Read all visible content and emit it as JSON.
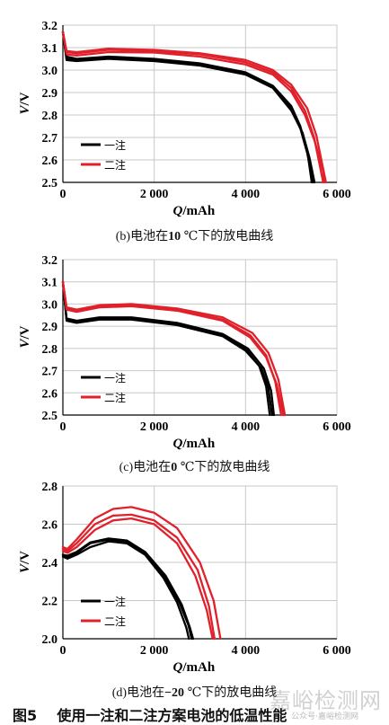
{
  "figure_title": "图5    使用一注和二注方案电池的低温性能",
  "watermark": "嘉峪检测网",
  "watermark_small": "公众号·嘉峪检测网",
  "colors": {
    "black": "#000000",
    "red": "#e0212b",
    "grid": "#c8c8c8",
    "axis": "#000000"
  },
  "chart_data": [
    {
      "type": "line",
      "caption": {
        "prefix": "(b)",
        "text": "电池在",
        "bold": "10",
        "suffix": " ℃下的放电曲线"
      },
      "xlabel": "Q/mAh",
      "ylabel": "V/V",
      "xlim": [
        0,
        6000
      ],
      "ylim": [
        2.5,
        3.2
      ],
      "xticks": [
        "0",
        "2 000",
        "4 000",
        "6 000"
      ],
      "yticks": [
        "2.5",
        "2.6",
        "2.7",
        "2.8",
        "2.9",
        "3.0",
        "3.1",
        "3.2"
      ],
      "grid": true,
      "legend_position": "bottom-left",
      "legend": [
        {
          "label": "一注",
          "color": "#000000"
        },
        {
          "label": "二注",
          "color": "#e0212b"
        }
      ],
      "series": [
        {
          "name": "一注",
          "color": "#000000",
          "points": [
            [
              0,
              3.17
            ],
            [
              80,
              3.06
            ],
            [
              300,
              3.05
            ],
            [
              1000,
              3.06
            ],
            [
              2000,
              3.05
            ],
            [
              3000,
              3.03
            ],
            [
              4000,
              2.99
            ],
            [
              4600,
              2.93
            ],
            [
              5000,
              2.84
            ],
            [
              5200,
              2.75
            ],
            [
              5350,
              2.64
            ],
            [
              5450,
              2.5
            ]
          ]
        },
        {
          "name": "一注",
          "color": "#000000",
          "points": [
            [
              0,
              3.17
            ],
            [
              80,
              3.05
            ],
            [
              300,
              3.045
            ],
            [
              1000,
              3.055
            ],
            [
              2000,
              3.045
            ],
            [
              3000,
              3.025
            ],
            [
              4000,
              2.985
            ],
            [
              4600,
              2.925
            ],
            [
              5000,
              2.83
            ],
            [
              5200,
              2.74
            ],
            [
              5350,
              2.63
            ],
            [
              5480,
              2.5
            ]
          ]
        },
        {
          "name": "一注",
          "color": "#000000",
          "points": [
            [
              0,
              3.17
            ],
            [
              80,
              3.045
            ],
            [
              300,
              3.04
            ],
            [
              1000,
              3.05
            ],
            [
              2000,
              3.04
            ],
            [
              3000,
              3.02
            ],
            [
              4000,
              2.98
            ],
            [
              4600,
              2.92
            ],
            [
              5000,
              2.82
            ],
            [
              5250,
              2.72
            ],
            [
              5400,
              2.61
            ],
            [
              5510,
              2.5
            ]
          ]
        },
        {
          "name": "二注",
          "color": "#e0212b",
          "points": [
            [
              0,
              3.17
            ],
            [
              80,
              3.08
            ],
            [
              300,
              3.075
            ],
            [
              1000,
              3.09
            ],
            [
              2000,
              3.085
            ],
            [
              3000,
              3.07
            ],
            [
              4000,
              3.035
            ],
            [
              4600,
              2.99
            ],
            [
              5000,
              2.92
            ],
            [
              5300,
              2.82
            ],
            [
              5500,
              2.7
            ],
            [
              5700,
              2.5
            ]
          ]
        },
        {
          "name": "二注",
          "color": "#e0212b",
          "points": [
            [
              0,
              3.17
            ],
            [
              80,
              3.085
            ],
            [
              300,
              3.08
            ],
            [
              1000,
              3.095
            ],
            [
              2000,
              3.09
            ],
            [
              3000,
              3.075
            ],
            [
              4000,
              3.045
            ],
            [
              4600,
              3.0
            ],
            [
              5000,
              2.935
            ],
            [
              5350,
              2.83
            ],
            [
              5550,
              2.71
            ],
            [
              5760,
              2.5
            ]
          ]
        },
        {
          "name": "二注",
          "color": "#e0212b",
          "points": [
            [
              0,
              3.17
            ],
            [
              80,
              3.07
            ],
            [
              300,
              3.065
            ],
            [
              1000,
              3.08
            ],
            [
              2000,
              3.078
            ],
            [
              3000,
              3.06
            ],
            [
              4000,
              3.025
            ],
            [
              4600,
              2.98
            ],
            [
              5000,
              2.905
            ],
            [
              5300,
              2.8
            ],
            [
              5520,
              2.68
            ],
            [
              5700,
              2.55
            ],
            [
              5730,
              2.5
            ]
          ]
        }
      ]
    },
    {
      "type": "line",
      "caption": {
        "prefix": "(c)",
        "text": "电池在",
        "bold": "0",
        "suffix": " ℃下的放电曲线"
      },
      "xlabel": "Q/mAh",
      "ylabel": "V/V",
      "xlim": [
        0,
        6000
      ],
      "ylim": [
        2.5,
        3.2
      ],
      "xticks": [
        "0",
        "2 000",
        "4 000",
        "6 000"
      ],
      "yticks": [
        "2.5",
        "2.6",
        "2.7",
        "2.8",
        "2.9",
        "3.0",
        "3.1",
        "3.2"
      ],
      "grid": true,
      "legend_position": "bottom-left",
      "legend": [
        {
          "label": "一注",
          "color": "#000000"
        },
        {
          "label": "二注",
          "color": "#e0212b"
        }
      ],
      "series": [
        {
          "name": "一注",
          "color": "#000000",
          "points": [
            [
              0,
              3.1
            ],
            [
              80,
              2.93
            ],
            [
              300,
              2.92
            ],
            [
              800,
              2.935
            ],
            [
              1500,
              2.935
            ],
            [
              2500,
              2.91
            ],
            [
              3500,
              2.86
            ],
            [
              4000,
              2.8
            ],
            [
              4300,
              2.72
            ],
            [
              4450,
              2.63
            ],
            [
              4530,
              2.5
            ]
          ]
        },
        {
          "name": "一注",
          "color": "#000000",
          "points": [
            [
              0,
              3.1
            ],
            [
              80,
              2.925
            ],
            [
              300,
              2.915
            ],
            [
              800,
              2.93
            ],
            [
              1500,
              2.93
            ],
            [
              2500,
              2.905
            ],
            [
              3500,
              2.855
            ],
            [
              4000,
              2.79
            ],
            [
              4350,
              2.71
            ],
            [
              4500,
              2.62
            ],
            [
              4580,
              2.5
            ]
          ]
        },
        {
          "name": "一注",
          "color": "#000000",
          "points": [
            [
              0,
              3.1
            ],
            [
              80,
              2.935
            ],
            [
              300,
              2.925
            ],
            [
              800,
              2.94
            ],
            [
              1500,
              2.94
            ],
            [
              2500,
              2.915
            ],
            [
              3500,
              2.865
            ],
            [
              4050,
              2.8
            ],
            [
              4400,
              2.71
            ],
            [
              4560,
              2.61
            ],
            [
              4620,
              2.5
            ]
          ]
        },
        {
          "name": "二注",
          "color": "#e0212b",
          "points": [
            [
              0,
              3.1
            ],
            [
              80,
              2.98
            ],
            [
              300,
              2.97
            ],
            [
              800,
              2.99
            ],
            [
              1500,
              2.995
            ],
            [
              2500,
              2.975
            ],
            [
              3500,
              2.93
            ],
            [
              4100,
              2.86
            ],
            [
              4450,
              2.77
            ],
            [
              4650,
              2.65
            ],
            [
              4780,
              2.5
            ]
          ]
        },
        {
          "name": "二注",
          "color": "#e0212b",
          "points": [
            [
              0,
              3.1
            ],
            [
              80,
              2.985
            ],
            [
              300,
              2.975
            ],
            [
              800,
              2.995
            ],
            [
              1500,
              3.0
            ],
            [
              2500,
              2.98
            ],
            [
              3500,
              2.94
            ],
            [
              4150,
              2.87
            ],
            [
              4500,
              2.78
            ],
            [
              4720,
              2.66
            ],
            [
              4860,
              2.5
            ]
          ]
        },
        {
          "name": "二注",
          "color": "#e0212b",
          "points": [
            [
              0,
              3.1
            ],
            [
              80,
              2.975
            ],
            [
              300,
              2.965
            ],
            [
              800,
              2.985
            ],
            [
              1500,
              2.99
            ],
            [
              2500,
              2.97
            ],
            [
              3500,
              2.925
            ],
            [
              4100,
              2.85
            ],
            [
              4450,
              2.76
            ],
            [
              4680,
              2.64
            ],
            [
              4830,
              2.5
            ]
          ]
        }
      ]
    },
    {
      "type": "line",
      "caption": {
        "prefix": "(d)",
        "text": "电池在",
        "bold": "−20",
        "suffix": " ℃下的放电曲线"
      },
      "xlabel": "Q/mAh",
      "ylabel": "V/V",
      "xlim": [
        0,
        6000
      ],
      "ylim": [
        2.0,
        2.8
      ],
      "xticks": [
        "0",
        "2 000",
        "4 000",
        "6 000"
      ],
      "yticks": [
        "2.0",
        "2.2",
        "2.4",
        "2.6",
        "2.8"
      ],
      "grid": true,
      "legend_position": "bottom-left",
      "legend": [
        {
          "label": "一注",
          "color": "#000000"
        },
        {
          "label": "二注",
          "color": "#e0212b"
        }
      ],
      "series": [
        {
          "name": "一注",
          "color": "#000000",
          "points": [
            [
              0,
              2.43
            ],
            [
              100,
              2.42
            ],
            [
              300,
              2.44
            ],
            [
              600,
              2.48
            ],
            [
              1000,
              2.51
            ],
            [
              1400,
              2.5
            ],
            [
              1800,
              2.44
            ],
            [
              2200,
              2.32
            ],
            [
              2500,
              2.19
            ],
            [
              2700,
              2.06
            ],
            [
              2760,
              2.0
            ]
          ]
        },
        {
          "name": "一注",
          "color": "#000000",
          "points": [
            [
              0,
              2.44
            ],
            [
              100,
              2.43
            ],
            [
              300,
              2.45
            ],
            [
              600,
              2.5
            ],
            [
              1000,
              2.52
            ],
            [
              1400,
              2.51
            ],
            [
              1800,
              2.45
            ],
            [
              2200,
              2.33
            ],
            [
              2550,
              2.19
            ],
            [
              2750,
              2.07
            ],
            [
              2820,
              2.0
            ]
          ]
        },
        {
          "name": "一注",
          "color": "#000000",
          "points": [
            [
              0,
              2.44
            ],
            [
              100,
              2.435
            ],
            [
              300,
              2.455
            ],
            [
              600,
              2.505
            ],
            [
              1000,
              2.525
            ],
            [
              1400,
              2.515
            ],
            [
              1800,
              2.455
            ],
            [
              2250,
              2.33
            ],
            [
              2600,
              2.18
            ],
            [
              2780,
              2.06
            ],
            [
              2850,
              2.0
            ]
          ]
        },
        {
          "name": "二注",
          "color": "#e0212b",
          "points": [
            [
              0,
              2.46
            ],
            [
              100,
              2.45
            ],
            [
              300,
              2.48
            ],
            [
              700,
              2.57
            ],
            [
              1100,
              2.62
            ],
            [
              1500,
              2.63
            ],
            [
              2000,
              2.6
            ],
            [
              2500,
              2.5
            ],
            [
              2900,
              2.33
            ],
            [
              3150,
              2.15
            ],
            [
              3280,
              2.0
            ]
          ]
        },
        {
          "name": "二注",
          "color": "#e0212b",
          "points": [
            [
              0,
              2.47
            ],
            [
              100,
              2.46
            ],
            [
              300,
              2.5
            ],
            [
              700,
              2.6
            ],
            [
              1100,
              2.645
            ],
            [
              1500,
              2.65
            ],
            [
              2000,
              2.62
            ],
            [
              2500,
              2.53
            ],
            [
              2950,
              2.36
            ],
            [
              3200,
              2.17
            ],
            [
              3320,
              2.0
            ]
          ]
        },
        {
          "name": "二注",
          "color": "#e0212b",
          "points": [
            [
              0,
              2.48
            ],
            [
              100,
              2.47
            ],
            [
              300,
              2.52
            ],
            [
              700,
              2.63
            ],
            [
              1100,
              2.68
            ],
            [
              1500,
              2.69
            ],
            [
              2000,
              2.66
            ],
            [
              2500,
              2.58
            ],
            [
              3000,
              2.4
            ],
            [
              3300,
              2.2
            ],
            [
              3450,
              2.0
            ]
          ]
        }
      ]
    }
  ]
}
